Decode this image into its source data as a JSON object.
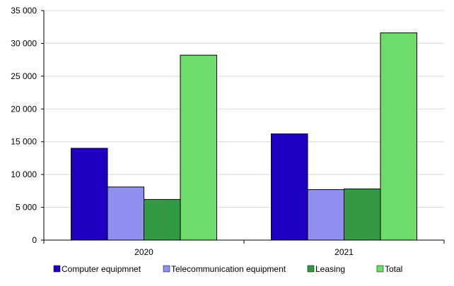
{
  "chart_data": {
    "type": "bar",
    "categories": [
      "2020",
      "2021"
    ],
    "series": [
      {
        "name": "Computer equipmnet",
        "color": "#2000C0",
        "values": [
          14000,
          16200
        ]
      },
      {
        "name": "Telecommunication equipment",
        "color": "#9090F0",
        "values": [
          8100,
          7700
        ]
      },
      {
        "name": "Leasing",
        "color": "#339944",
        "values": [
          6200,
          7800
        ]
      },
      {
        "name": "Total",
        "color": "#6EDB6A",
        "values": [
          28200,
          31600
        ]
      }
    ],
    "ylim": [
      0,
      35000
    ],
    "yticks": [
      0,
      5000,
      10000,
      15000,
      20000,
      25000,
      30000,
      35000
    ],
    "ytick_labels": [
      "0",
      "5 000",
      "10 000",
      "15 000",
      "20 000",
      "25 000",
      "30 000",
      "35 000"
    ],
    "grid": true,
    "legend_position": "bottom"
  }
}
